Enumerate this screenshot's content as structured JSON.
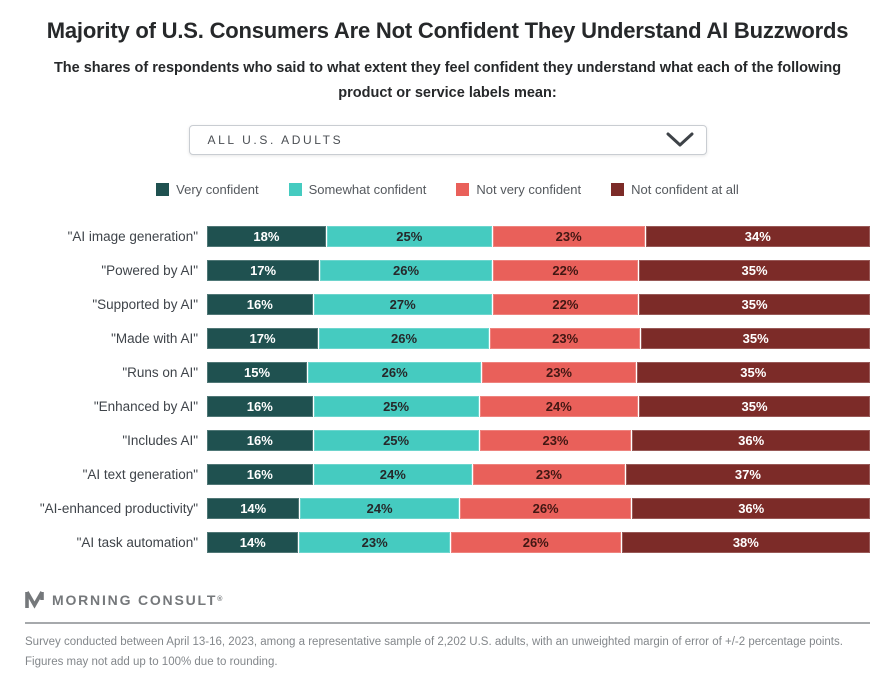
{
  "page": {
    "title": "Majority of U.S. Consumers Are Not Confident They Understand AI Buzzwords",
    "subtitle": "The shares of respondents who said to what extent they feel confident they understand what each of the following product or service labels mean:"
  },
  "dropdown": {
    "value": "ALL U.S. ADULTS"
  },
  "colors": {
    "very_confident": "#1F5150",
    "somewhat_confident": "#45CBC0",
    "not_very_confident": "#E9605A",
    "not_confident_at_all": "#7C2B28",
    "divider": "#A6A9AC",
    "brand_gray": "#75787B"
  },
  "chart_data": {
    "type": "bar",
    "stacked": true,
    "orientation": "horizontal",
    "value_suffix": "%",
    "legend_position": "top",
    "grid": false,
    "categories": [
      "\"AI image generation\"",
      "\"Powered by AI\"",
      "\"Supported by AI\"",
      "\"Made with AI\"",
      "\"Runs on AI\"",
      "\"Enhanced by AI\"",
      "\"Includes AI\"",
      "\"AI text generation\"",
      "\"AI-enhanced productivity\"",
      "\"AI task automation\""
    ],
    "series": [
      {
        "name": "Very confident",
        "color": "#1F5150",
        "text_color": "#FFFFFF",
        "values": [
          18,
          17,
          16,
          17,
          15,
          16,
          16,
          16,
          14,
          14
        ]
      },
      {
        "name": "Somewhat confident",
        "color": "#45CBC0",
        "text_color": "#26282A",
        "values": [
          25,
          26,
          27,
          26,
          26,
          25,
          25,
          24,
          24,
          23
        ]
      },
      {
        "name": "Not very confident",
        "color": "#E9605A",
        "text_color": "#421713",
        "values": [
          23,
          22,
          22,
          23,
          23,
          24,
          23,
          23,
          26,
          26
        ]
      },
      {
        "name": "Not confident at all",
        "color": "#7C2B28",
        "text_color": "#FFFFFF",
        "values": [
          34,
          35,
          35,
          35,
          35,
          35,
          36,
          37,
          36,
          38
        ]
      }
    ]
  },
  "footer": {
    "brand": "MORNING CONSULT",
    "brand_mark": "®",
    "note_line1": "Survey conducted between April 13-16, 2023, among a representative sample of 2,202 U.S. adults, with an unweighted margin of error of +/-2 percentage points.",
    "note_line2": "Figures may not add up to 100% due to rounding."
  }
}
